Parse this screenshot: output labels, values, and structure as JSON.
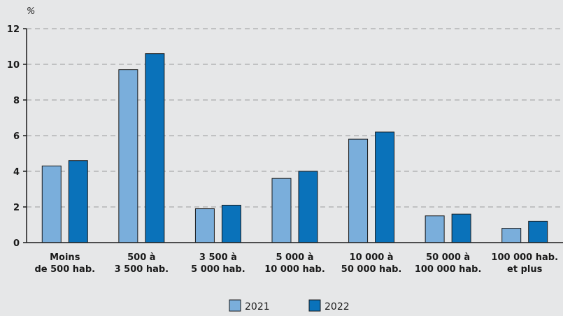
{
  "chart_data": {
    "type": "bar",
    "unit_label": "%",
    "ylim": [
      0,
      12
    ],
    "yticks": [
      0,
      2,
      4,
      6,
      8,
      10,
      12
    ],
    "grid": true,
    "legend_position": "bottom-center",
    "categories": [
      [
        "Moins",
        "de 500 hab."
      ],
      [
        "500 à",
        "3 500 hab."
      ],
      [
        "3 500 à",
        "5 000 hab."
      ],
      [
        "5 000 à",
        "10 000 hab."
      ],
      [
        "10 000 à",
        "50 000 hab."
      ],
      [
        "50 000 à",
        "100 000 hab."
      ],
      [
        "100 000 hab.",
        "et plus"
      ]
    ],
    "series": [
      {
        "name": "2021",
        "color": "#7aaedb",
        "values": [
          4.3,
          9.7,
          1.9,
          3.6,
          5.8,
          1.5,
          0.8
        ]
      },
      {
        "name": "2022",
        "color": "#0a72ba",
        "values": [
          4.6,
          10.6,
          2.1,
          4.0,
          6.2,
          1.6,
          1.2
        ]
      }
    ]
  }
}
